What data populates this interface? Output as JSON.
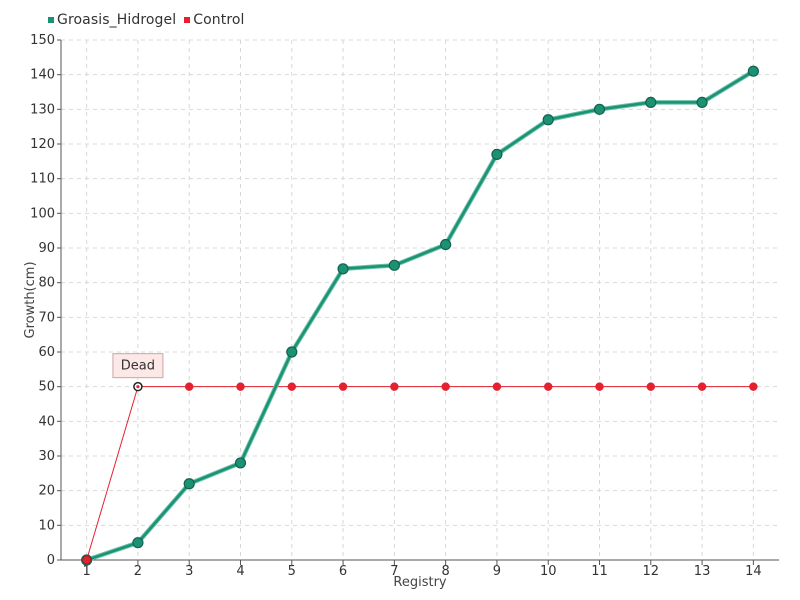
{
  "chart_data": {
    "type": "line",
    "xlabel": "Registry",
    "ylabel": "Growth(cm)",
    "x": [
      1,
      2,
      3,
      4,
      5,
      6,
      7,
      8,
      9,
      10,
      11,
      12,
      13,
      14
    ],
    "xlim": [
      0.5,
      14.5
    ],
    "ylim": [
      0,
      150
    ],
    "yticks": [
      0,
      10,
      20,
      30,
      40,
      50,
      60,
      70,
      80,
      90,
      100,
      110,
      120,
      130,
      140,
      150
    ],
    "grid": true,
    "legend_position": "top-left",
    "series": [
      {
        "name": "Groasis_Hidrogel",
        "color": "#1a9274",
        "values": [
          0,
          5,
          22,
          28,
          60,
          84,
          85,
          91,
          117,
          127,
          130,
          132,
          132,
          141
        ]
      },
      {
        "name": "Control",
        "color": "#e3212f",
        "values": [
          0,
          50,
          50,
          50,
          50,
          50,
          50,
          50,
          50,
          50,
          50,
          50,
          50,
          50
        ]
      }
    ],
    "annotations": [
      {
        "text": "Dead",
        "series": "Control",
        "x": 2,
        "y": 50
      }
    ]
  },
  "legend": {
    "items": [
      {
        "label": "Groasis_Hidrogel",
        "color": "#1a9274"
      },
      {
        "label": "Control",
        "color": "#e3212f"
      }
    ]
  }
}
